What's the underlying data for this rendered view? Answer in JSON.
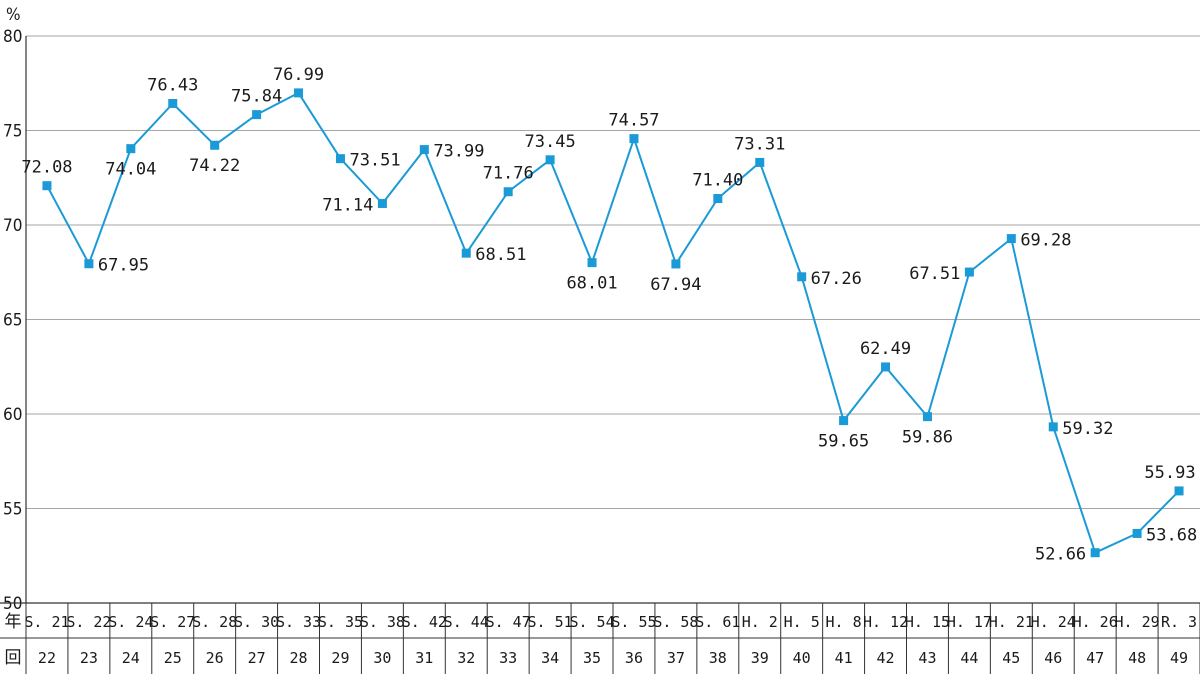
{
  "chart_data": {
    "type": "line",
    "ylabel": "%",
    "ylim": [
      50,
      80
    ],
    "yticks": [
      50,
      55,
      60,
      65,
      70,
      75,
      80
    ],
    "grid": true,
    "row_labels": {
      "year": "年",
      "session": "回"
    },
    "categories": [
      "S. 21",
      "S. 22",
      "S. 24",
      "S. 27",
      "S. 28",
      "S. 30",
      "S. 33",
      "S. 35",
      "S. 38",
      "S. 42",
      "S. 44",
      "S. 47",
      "S. 51",
      "S. 54",
      "S. 55",
      "S. 58",
      "S. 61",
      "H. 2",
      "H. 5",
      "H. 8",
      "H. 12",
      "H. 15",
      "H. 17",
      "H. 21",
      "H. 24",
      "H. 26",
      "H. 29",
      "R. 3"
    ],
    "sessions": [
      "22",
      "23",
      "24",
      "25",
      "26",
      "27",
      "28",
      "29",
      "30",
      "31",
      "32",
      "33",
      "34",
      "35",
      "36",
      "37",
      "38",
      "39",
      "40",
      "41",
      "42",
      "43",
      "44",
      "45",
      "46",
      "47",
      "48",
      "49"
    ],
    "values": [
      72.08,
      67.95,
      74.04,
      76.43,
      74.22,
      75.84,
      76.99,
      73.51,
      71.14,
      73.99,
      68.51,
      71.76,
      73.45,
      68.01,
      74.57,
      67.94,
      71.4,
      73.31,
      67.26,
      59.65,
      62.49,
      59.86,
      67.51,
      69.28,
      59.32,
      52.66,
      53.68,
      55.93
    ],
    "labels": [
      "72.08",
      "67.95",
      "74.04",
      "76.43",
      "74.22",
      "75.84",
      "76.99",
      "73.51",
      "71.14",
      "73.99",
      "68.51",
      "71.76",
      "73.45",
      "68.01",
      "74.57",
      "67.94",
      "71.40",
      "73.31",
      "67.26",
      "59.65",
      "62.49",
      "59.86",
      "67.51",
      "69.28",
      "59.32",
      "52.66",
      "53.68",
      "55.93"
    ],
    "colors": {
      "line": "#1a9ad6",
      "marker": "#1a9ad6",
      "grid": "#a6a6a6",
      "axis": "#333333"
    }
  }
}
